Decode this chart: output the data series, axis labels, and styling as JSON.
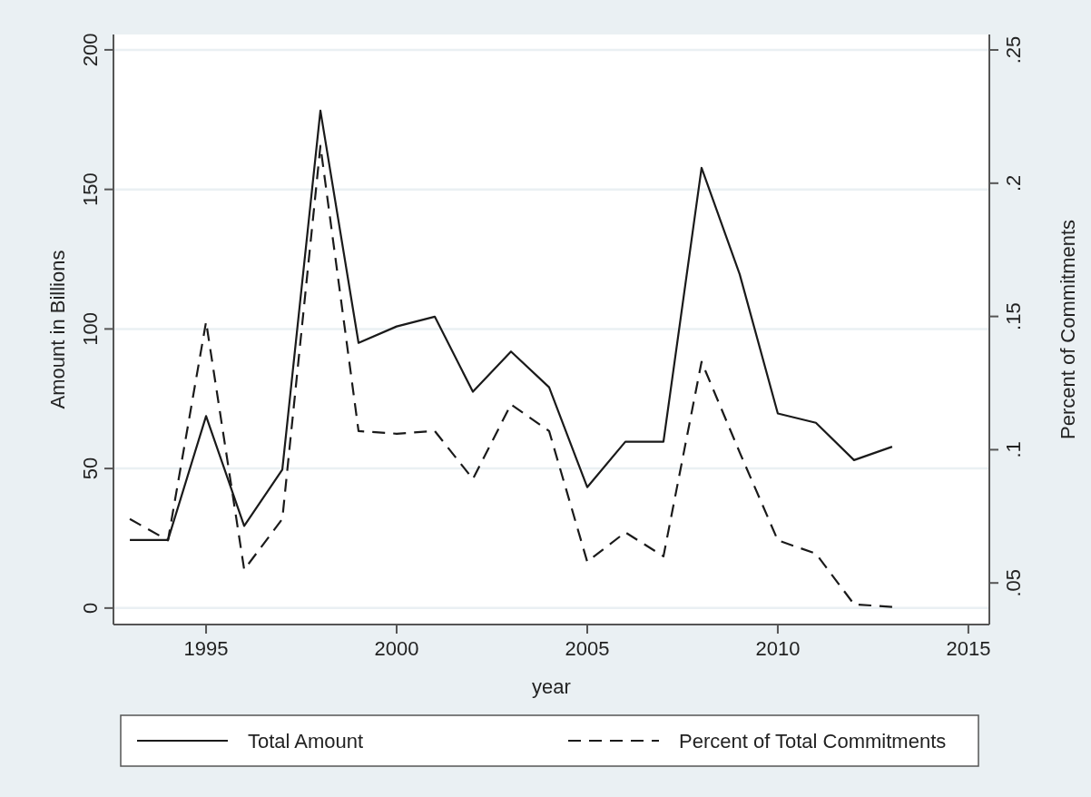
{
  "chart_data": {
    "type": "line",
    "xlabel": "year",
    "ylabel": "Amount in Billions",
    "y2label": "Percent of Commitments",
    "x": [
      1993,
      1994,
      1995,
      1996,
      1997,
      1998,
      1999,
      2000,
      2001,
      2002,
      2003,
      2004,
      2005,
      2006,
      2007,
      2008,
      2009,
      2010,
      2011,
      2012,
      2013
    ],
    "series": [
      {
        "name": "Total Amount",
        "color": "#1a1a1a",
        "line_style": "solid",
        "values": [
          24.4,
          24.4,
          68.8,
          29.4,
          49.6,
          178.2,
          95,
          100.9,
          104.4,
          77.5,
          91.9,
          79.1,
          43.3,
          59.6,
          59.6,
          157.7,
          119.6,
          69.7,
          66.4,
          53,
          57.8
        ]
      },
      {
        "name": "Percent of Total Commitments",
        "color": "#1a1a1a",
        "line_style": "dashed",
        "axis": "y2",
        "values": [
          0.074,
          0.066,
          0.148,
          0.055,
          0.074,
          0.214,
          0.107,
          0.106,
          0.107,
          0.089,
          0.117,
          0.107,
          0.058,
          0.069,
          0.06,
          0.133,
          0.099,
          0.066,
          0.061,
          0.042,
          0.041
        ]
      }
    ],
    "xlim": [
      1992.57,
      2015.55
    ],
    "xticks": [
      1995,
      2000,
      2005,
      2010,
      2015
    ],
    "ylim": [
      -5.9,
      205.5
    ],
    "yticks": [
      0,
      50,
      100,
      150,
      200
    ],
    "y2lim": [
      0.0344,
      0.2558
    ],
    "y2ticks": [
      {
        "value": 0.05,
        "label": ".05"
      },
      {
        "value": 0.1,
        "label": ".1"
      },
      {
        "value": 0.15,
        "label": ".15"
      },
      {
        "value": 0.2,
        "label": ".2"
      },
      {
        "value": 0.25,
        "label": ".25"
      }
    ],
    "grid": "y",
    "legend": "bottom",
    "marker": "none"
  }
}
